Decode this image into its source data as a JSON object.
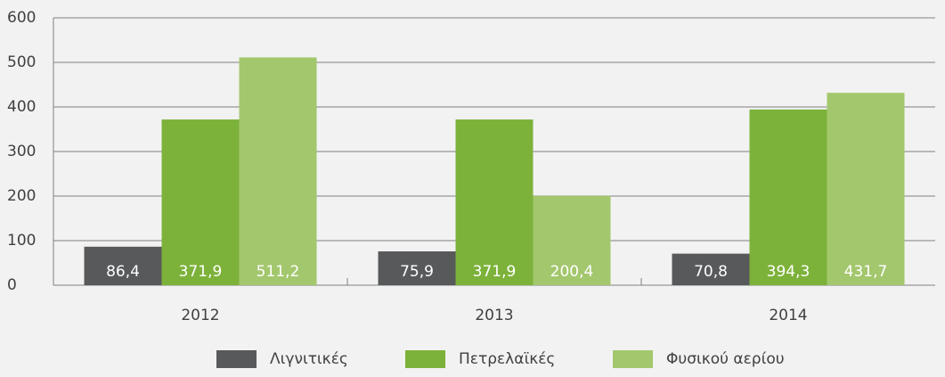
{
  "chart_data": {
    "type": "bar",
    "categories": [
      "2012",
      "2013",
      "2014"
    ],
    "series": [
      {
        "name": "Λιγνιτικές",
        "color": "#58595b",
        "values": [
          86.4,
          75.9,
          70.8
        ],
        "value_labels": [
          "86,4",
          "75,9",
          "70,8"
        ]
      },
      {
        "name": "Πετρελαϊκές",
        "color": "#7db23a",
        "values": [
          371.9,
          371.9,
          394.3
        ],
        "value_labels": [
          "371,9",
          "371,9",
          "394,3"
        ]
      },
      {
        "name": "Φυσικού αερίου",
        "color": "#a3c76d",
        "values": [
          511.2,
          200.4,
          431.7
        ],
        "value_labels": [
          "511,2",
          "200,4",
          "431,7"
        ]
      }
    ],
    "ylim": [
      0,
      600
    ],
    "yticks": [
      0,
      100,
      200,
      300,
      400,
      500,
      600
    ],
    "grid": true,
    "legend": "bottom"
  }
}
